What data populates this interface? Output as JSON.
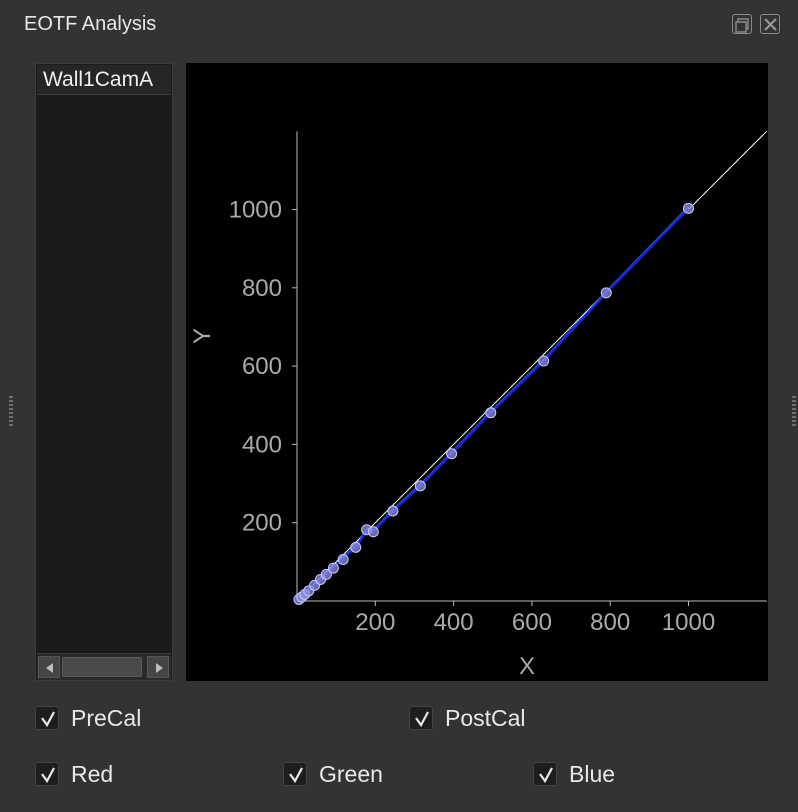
{
  "window": {
    "title": "EOTF Analysis",
    "float_icon": "float-icon",
    "close_icon": "close-icon"
  },
  "sidebar": {
    "items": [
      {
        "label": "Wall1CamA"
      }
    ]
  },
  "checkboxes": {
    "precal": {
      "label": "PreCal",
      "checked": true
    },
    "postcal": {
      "label": "PostCal",
      "checked": true
    },
    "red": {
      "label": "Red",
      "checked": true
    },
    "green": {
      "label": "Green",
      "checked": true
    },
    "blue": {
      "label": "Blue",
      "checked": true
    }
  },
  "chart_data": {
    "type": "line",
    "xlabel": "X",
    "ylabel": "Y",
    "xlim": [
      0,
      1200
    ],
    "ylim": [
      0,
      1200
    ],
    "x_ticks": [
      200,
      400,
      600,
      800,
      1000
    ],
    "y_ticks": [
      200,
      400,
      600,
      800,
      1000
    ],
    "grid": false,
    "colors": {
      "reference": "#ffffff",
      "green": "#2ecc40",
      "blue": "#1a1aff",
      "points": "#8c8ce6"
    },
    "series": [
      {
        "key": "reference",
        "x": [
          0,
          1200
        ],
        "y": [
          0,
          1200
        ]
      },
      {
        "key": "green",
        "x": [
          0,
          10,
          20,
          30,
          45,
          60,
          75,
          90,
          115,
          150,
          180,
          195,
          245,
          315,
          395,
          495,
          630,
          790,
          1000
        ],
        "y": [
          0,
          8,
          17,
          26,
          40,
          55,
          68,
          84,
          106,
          137,
          182,
          177,
          230,
          294,
          376,
          481,
          613,
          787,
          1003
        ]
      },
      {
        "key": "blue",
        "x": [
          0,
          10,
          20,
          30,
          45,
          60,
          75,
          90,
          115,
          150,
          180,
          195,
          245,
          315,
          395,
          495,
          630,
          790,
          1000
        ],
        "y": [
          0,
          8,
          17,
          26,
          40,
          55,
          68,
          84,
          106,
          137,
          182,
          177,
          230,
          294,
          376,
          481,
          613,
          787,
          1003
        ]
      }
    ],
    "points": {
      "x": [
        5,
        12,
        20,
        30,
        45,
        60,
        75,
        93,
        118,
        150,
        178,
        195,
        245,
        315,
        395,
        495,
        630,
        790,
        1000
      ],
      "y": [
        4,
        10,
        17,
        26,
        40,
        55,
        68,
        84,
        106,
        137,
        182,
        177,
        230,
        294,
        376,
        481,
        613,
        787,
        1003
      ]
    }
  }
}
